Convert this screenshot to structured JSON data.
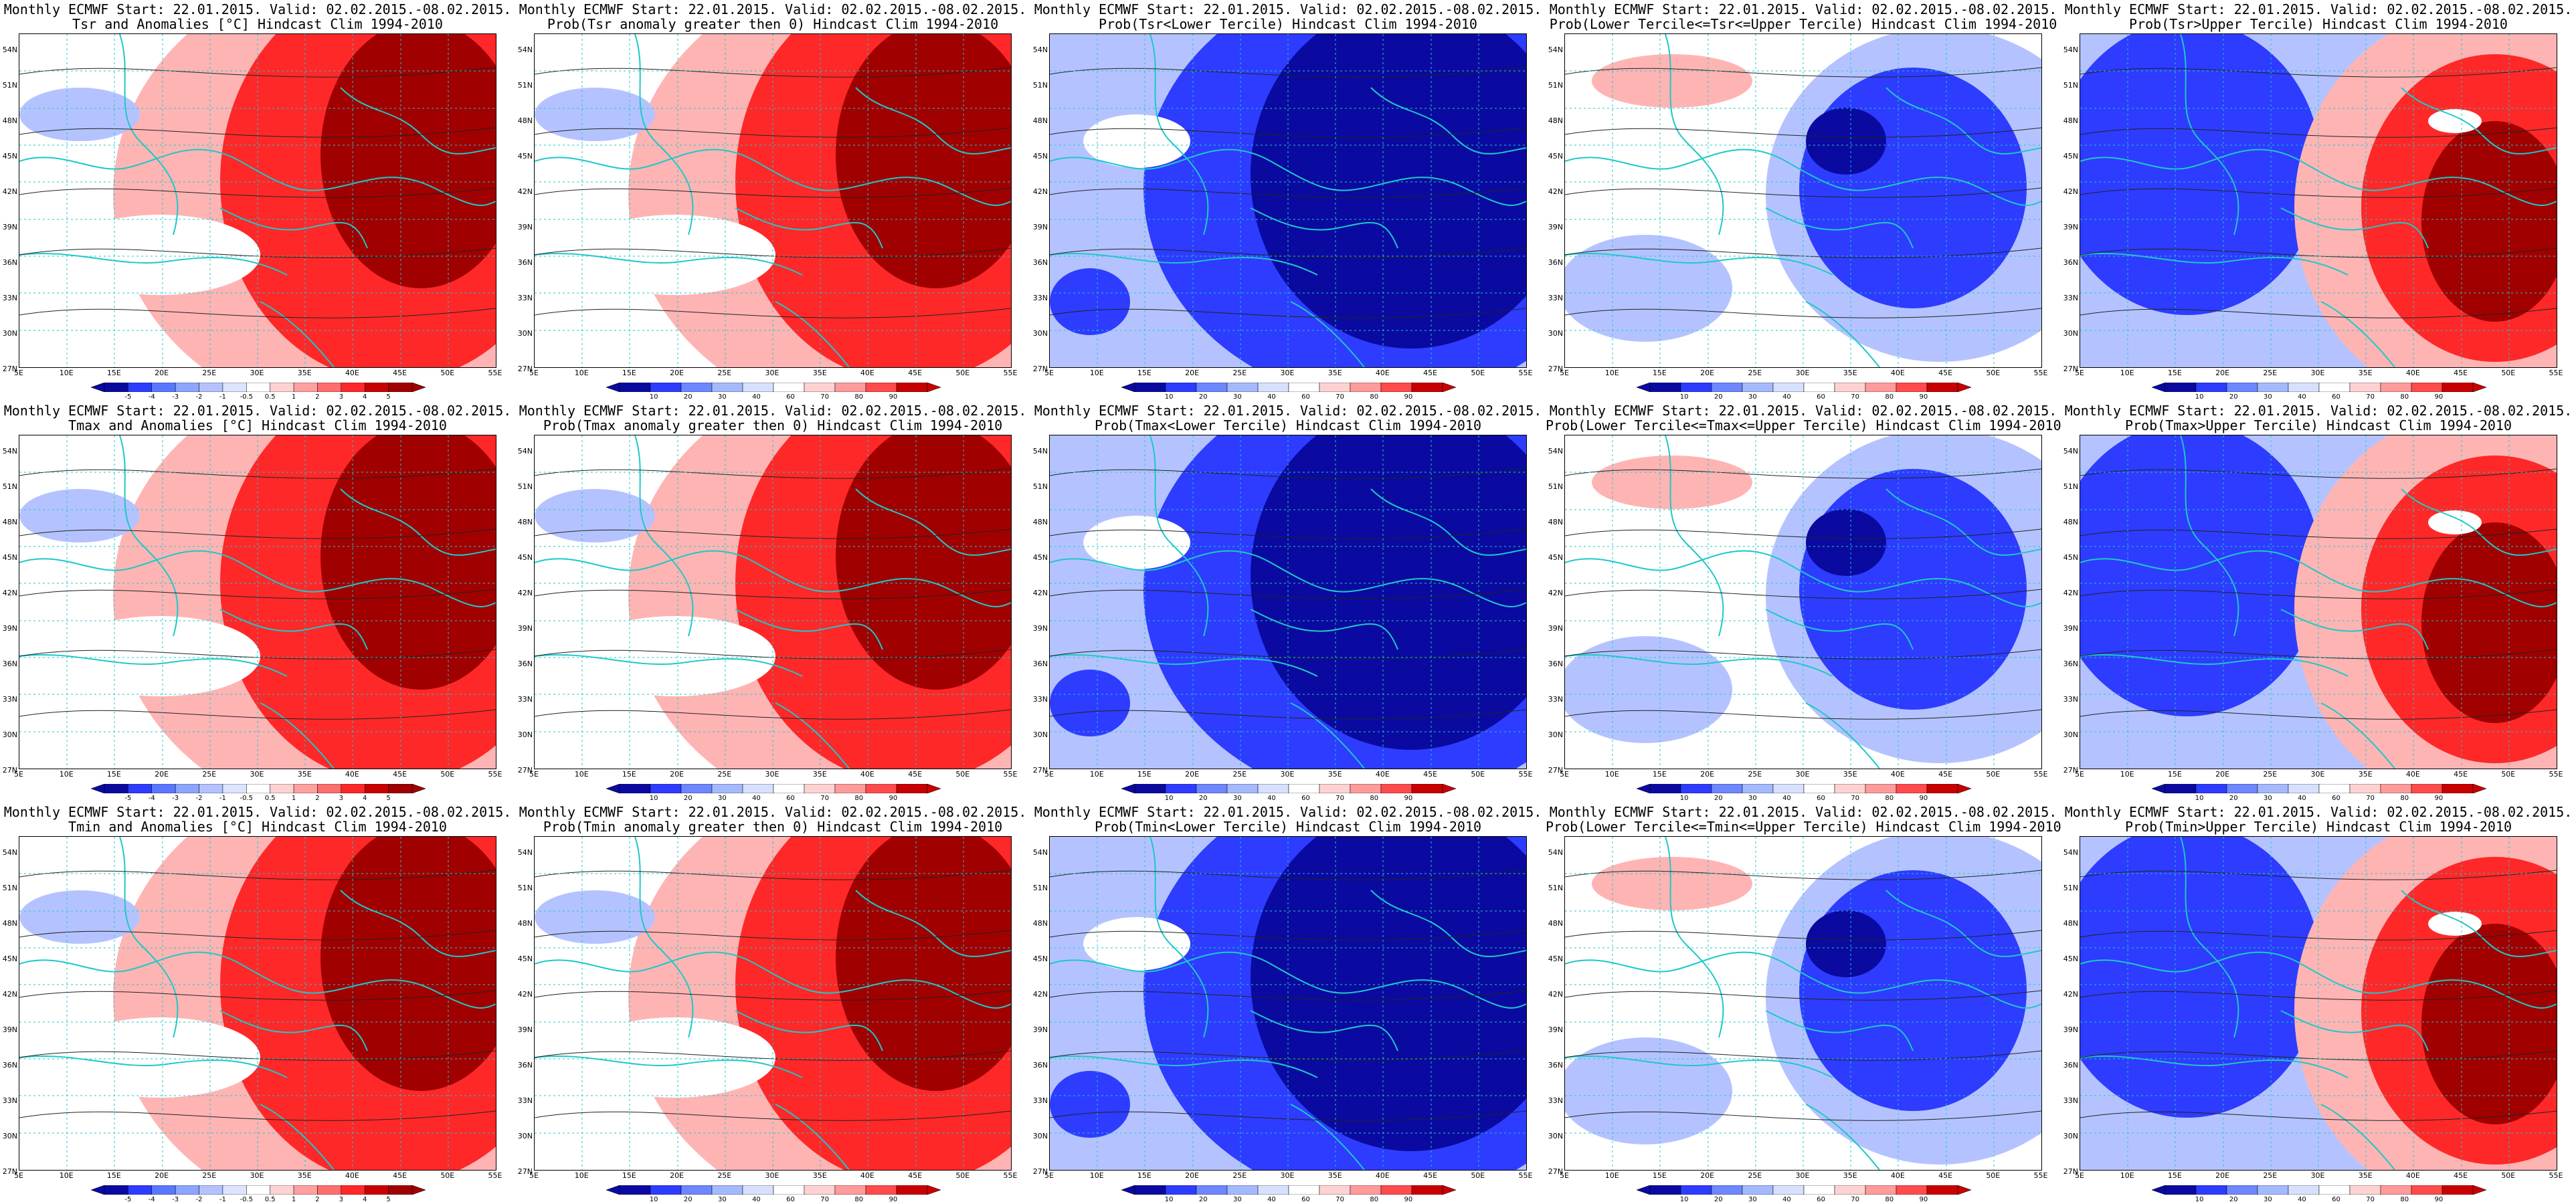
{
  "title_line1": "Monthly ECMWF Start: 22.01.2015. Valid: 02.02.2015.-08.02.2015.",
  "lat_labels": [
    "54N",
    "51N",
    "48N",
    "45N",
    "42N",
    "39N",
    "36N",
    "33N",
    "30N",
    "27N"
  ],
  "lon_labels": [
    "5E",
    "10E",
    "15E",
    "20E",
    "25E",
    "30E",
    "35E",
    "40E",
    "45E",
    "50E",
    "55E"
  ],
  "anomaly_ticks": [
    "-5",
    "-4",
    "-3",
    "-2",
    "-1",
    "-0.5",
    "0.5",
    "1",
    "2",
    "3",
    "4",
    "5"
  ],
  "prob_ticks": [
    "10",
    "20",
    "30",
    "40",
    "60",
    "70",
    "80",
    "90"
  ],
  "colors": {
    "deep_blue": "#0a0aa0",
    "blue": "#2d3cff",
    "light_blue": "#b4c3ff",
    "white": "#ffffff",
    "light_red": "#ffb4b4",
    "red": "#ff2828",
    "deep_red": "#a00000",
    "coast": "#1ec8c8"
  },
  "panels": [
    {
      "title2": "Tsr and Anomalies [°C] Hindcast Clim 1994-2010",
      "scale": "anomaly",
      "mode": "warm"
    },
    {
      "title2": "Prob(Tsr anomaly greater then 0) Hindcast Clim 1994-2010",
      "scale": "prob",
      "mode": "warm"
    },
    {
      "title2": "Prob(Tsr<Lower Tercile) Hindcast Clim 1994-2010",
      "scale": "prob",
      "mode": "cold"
    },
    {
      "title2": "Prob(Lower Tercile<=Tsr<=Upper Tercile) Hindcast Clim 1994-2010",
      "scale": "prob",
      "mode": "mid"
    },
    {
      "title2": "Prob(Tsr>Upper Tercile) Hindcast Clim 1994-2010",
      "scale": "prob",
      "mode": "split"
    },
    {
      "title2": "Tmax and Anomalies [°C] Hindcast Clim 1994-2010",
      "scale": "anomaly",
      "mode": "warm"
    },
    {
      "title2": "Prob(Tmax anomaly greater then 0) Hindcast Clim 1994-2010",
      "scale": "prob",
      "mode": "warm"
    },
    {
      "title2": "Prob(Tmax<Lower Tercile) Hindcast Clim 1994-2010",
      "scale": "prob",
      "mode": "cold"
    },
    {
      "title2": "Prob(Lower Tercile<=Tmax<=Upper Tercile) Hindcast Clim 1994-2010",
      "scale": "prob",
      "mode": "mid"
    },
    {
      "title2": "Prob(Tmax>Upper Tercile) Hindcast Clim 1994-2010",
      "scale": "prob",
      "mode": "split"
    },
    {
      "title2": "Tmin and Anomalies [°C] Hindcast Clim 1994-2010",
      "scale": "anomaly",
      "mode": "warm"
    },
    {
      "title2": "Prob(Tmin anomaly greater then 0) Hindcast Clim 1994-2010",
      "scale": "prob",
      "mode": "warm"
    },
    {
      "title2": "Prob(Tmin<Lower Tercile) Hindcast Clim 1994-2010",
      "scale": "prob",
      "mode": "cold"
    },
    {
      "title2": "Prob(Lower Tercile<=Tmin<=Upper Tercile) Hindcast Clim 1994-2010",
      "scale": "prob",
      "mode": "mid"
    },
    {
      "title2": "Prob(Tmin>Upper Tercile) Hindcast Clim 1994-2010",
      "scale": "prob",
      "mode": "split"
    }
  ]
}
